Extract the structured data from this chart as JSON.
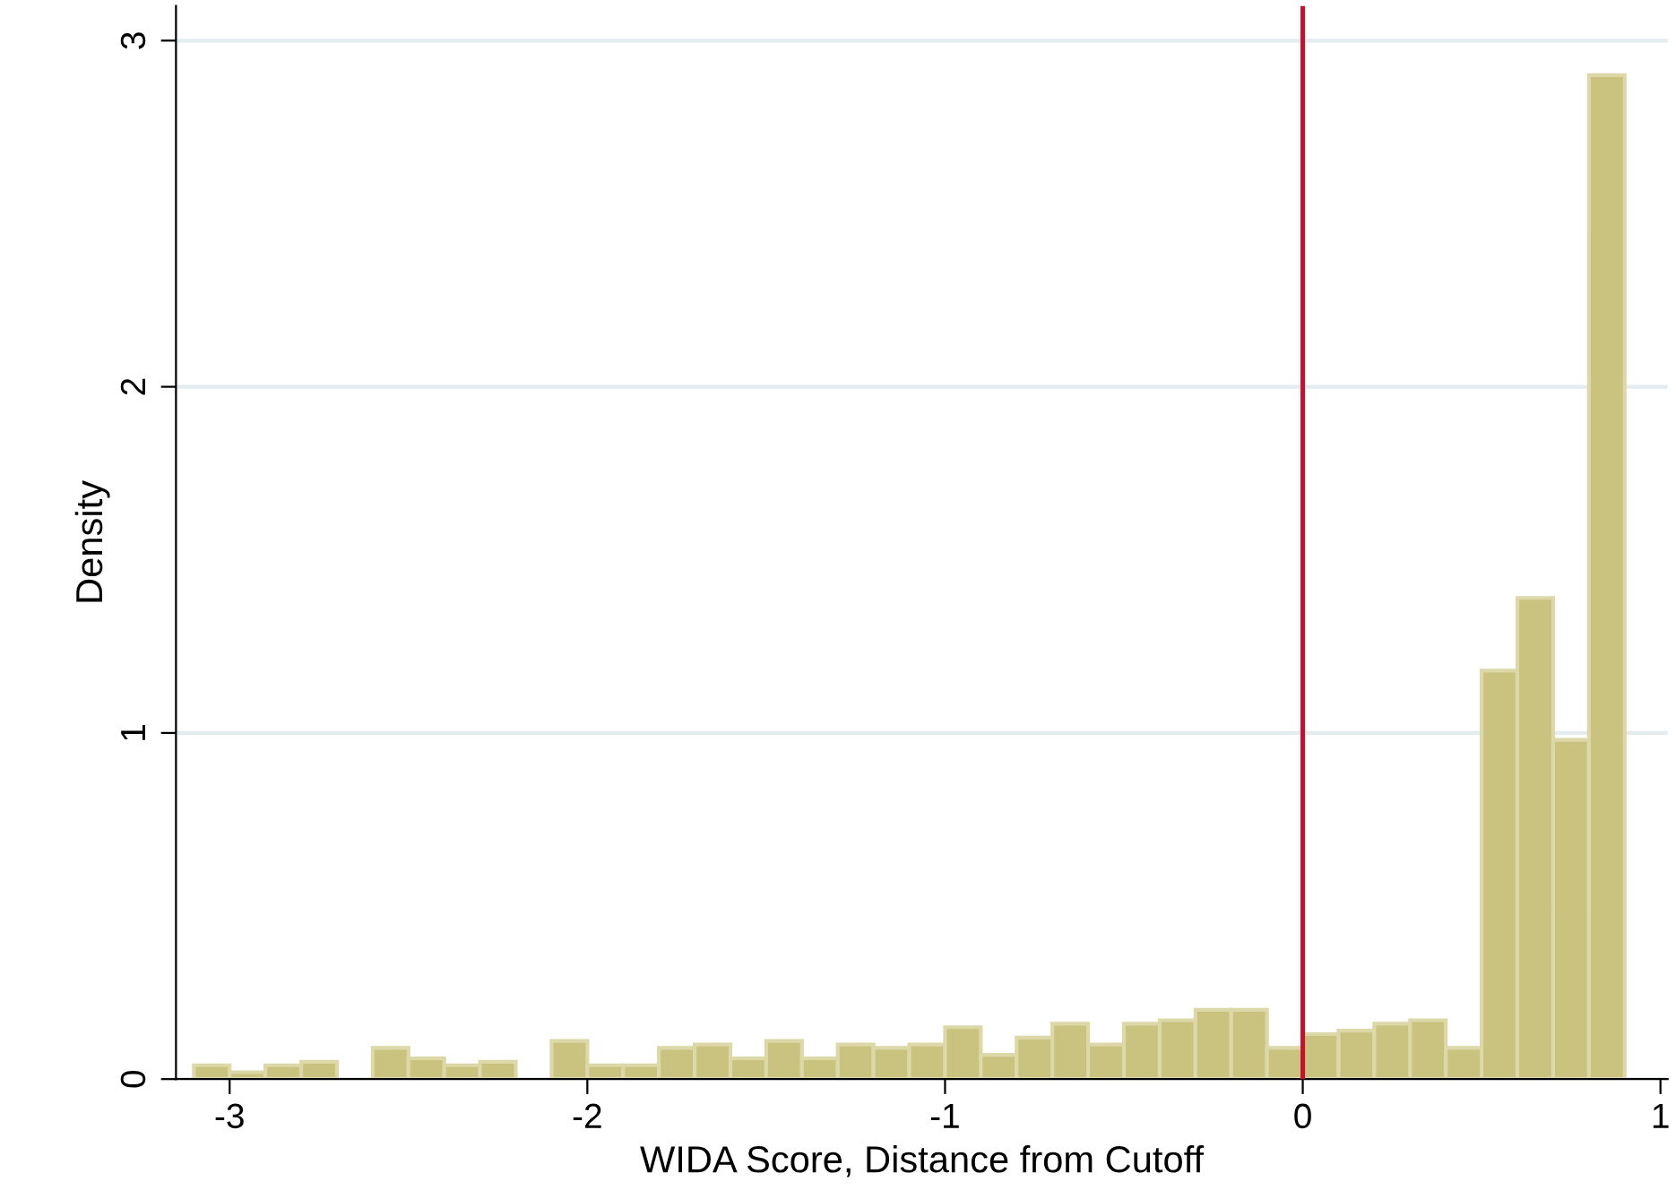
{
  "chart_data": {
    "type": "histogram",
    "xlabel": "WIDA Score, Distance from Cutoff",
    "ylabel": "Density",
    "bins": [
      -3.1,
      -3.0,
      -2.9,
      -2.8,
      -2.7,
      -2.6,
      -2.5,
      -2.4,
      -2.3,
      -2.2,
      -2.1,
      -2.0,
      -1.9,
      -1.8,
      -1.7,
      -1.6,
      -1.5,
      -1.4,
      -1.3,
      -1.2,
      -1.1,
      -1.0,
      -0.9,
      -0.8,
      -0.7,
      -0.6,
      -0.5,
      -0.4,
      -0.3,
      -0.2,
      -0.1,
      0.0,
      0.1,
      0.2,
      0.3,
      0.4,
      0.5,
      0.6,
      0.7,
      0.8,
      0.9
    ],
    "values": [
      0.04,
      0.02,
      0.04,
      0.05,
      0,
      0.09,
      0.06,
      0.04,
      0.05,
      0,
      0.11,
      0.04,
      0.04,
      0.09,
      0.1,
      0.06,
      0.11,
      0.06,
      0.1,
      0.09,
      0.1,
      0.15,
      0.07,
      0.12,
      0.16,
      0.1,
      0.16,
      0.17,
      0.2,
      0.2,
      0.09,
      0.13,
      0.14,
      0.16,
      0.17,
      0.09,
      1.18,
      1.39,
      0.98,
      2.9
    ],
    "color": "#c9c37f",
    "xlim": [
      -3.15,
      1.02
    ],
    "ylim": [
      0,
      3.1
    ],
    "xticks": [
      -3,
      -2,
      -1,
      0,
      1
    ],
    "yticks": [
      0,
      1,
      2,
      3
    ],
    "grid": "y",
    "ref_lines": [
      {
        "axis": "x",
        "value": 0,
        "color": "#c8102e"
      }
    ]
  }
}
